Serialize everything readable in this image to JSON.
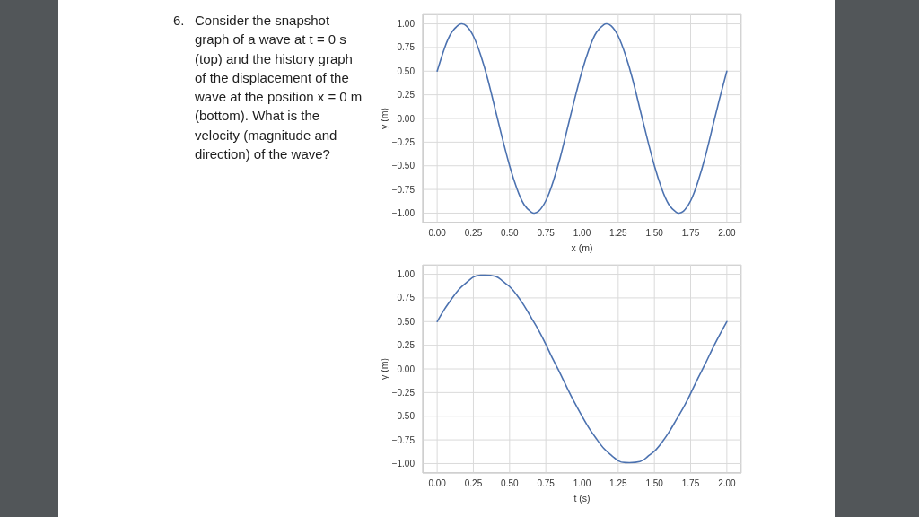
{
  "chart_data": [
    {
      "type": "line",
      "xlabel": "x (m)",
      "ylabel": "y (m)",
      "annotations": [
        "6. Consider the snapshot\ngraph of a wave at t = 0 s\n(top) and the history graph\nof the displacement of the\nwave at the position x = 0 m\n(bottom). What is the\nvelocity (magnitude and\ndirection) of the wave?"
      ],
      "x": [
        0,
        0.05,
        0.1,
        0.15,
        0.17,
        0.2,
        0.25,
        0.3,
        0.35,
        0.4,
        0.45,
        0.5,
        0.55,
        0.6,
        0.65,
        0.67,
        0.7,
        0.75,
        0.8,
        0.85,
        0.9,
        0.95,
        1.0,
        1.05,
        1.1,
        1.15,
        1.17,
        1.2,
        1.25,
        1.3,
        1.35,
        1.4,
        1.45,
        1.5,
        1.55,
        1.6,
        1.65,
        1.67,
        1.7,
        1.75,
        1.8,
        1.85,
        1.9,
        1.95,
        2.0
      ],
      "series": [
        {
          "color": "#4c72b0",
          "values": [
            0.5,
            0.74,
            0.91,
            0.99,
            1.0,
            0.98,
            0.87,
            0.67,
            0.41,
            0.1,
            -0.21,
            -0.5,
            -0.74,
            -0.91,
            -0.99,
            -1.0,
            -0.98,
            -0.87,
            -0.67,
            -0.41,
            -0.1,
            0.21,
            0.5,
            0.74,
            0.91,
            0.99,
            1.0,
            0.98,
            0.87,
            0.67,
            0.41,
            0.1,
            -0.21,
            -0.5,
            -0.74,
            -0.91,
            -0.99,
            -1.0,
            -0.98,
            -0.87,
            -0.67,
            -0.41,
            -0.1,
            0.21,
            0.5
          ]
        }
      ],
      "xlim": [
        -0.1,
        2.1
      ],
      "ylim": [
        -1.1,
        1.1
      ],
      "xticks": [
        {
          "value": 0,
          "label": "0.00"
        },
        {
          "value": 0.25,
          "label": "0.25"
        },
        {
          "value": 0.5,
          "label": "0.50"
        },
        {
          "value": 0.75,
          "label": "0.75"
        },
        {
          "value": 1,
          "label": "1.00"
        },
        {
          "value": 1.25,
          "label": "1.25"
        },
        {
          "value": 1.5,
          "label": "1.50"
        },
        {
          "value": 1.75,
          "label": "1.75"
        },
        {
          "value": 2,
          "label": "2.00"
        }
      ],
      "yticks": [
        {
          "value": -1,
          "label": "−1.00"
        },
        {
          "value": -0.75,
          "label": "−0.75"
        },
        {
          "value": -0.5,
          "label": "−0.50"
        },
        {
          "value": -0.25,
          "label": "−0.25"
        },
        {
          "value": 0,
          "label": "0.00"
        },
        {
          "value": 0.25,
          "label": "0.25"
        },
        {
          "value": 0.5,
          "label": "0.50"
        },
        {
          "value": 0.75,
          "label": "0.75"
        },
        {
          "value": 1,
          "label": "1.00"
        }
      ],
      "grid": true
    },
    {
      "type": "line",
      "xlabel": "t (s)",
      "ylabel": "y (m)",
      "x": [
        0,
        0.05,
        0.1,
        0.15,
        0.2,
        0.25,
        0.3,
        0.4,
        0.45,
        0.5,
        0.55,
        0.6,
        0.65,
        0.7,
        0.75,
        0.8,
        0.85,
        0.9,
        0.95,
        1.0,
        1.05,
        1.1,
        1.15,
        1.2,
        1.25,
        1.3,
        1.4,
        1.45,
        1.5,
        1.55,
        1.6,
        1.65,
        1.7,
        1.75,
        1.8,
        1.85,
        1.9,
        1.95,
        2.0
      ],
      "series": [
        {
          "color": "#4c72b0",
          "values": [
            0.5,
            0.63,
            0.74,
            0.84,
            0.91,
            0.97,
            0.99,
            0.98,
            0.93,
            0.87,
            0.78,
            0.67,
            0.54,
            0.41,
            0.26,
            0.1,
            -0.05,
            -0.21,
            -0.36,
            -0.5,
            -0.63,
            -0.74,
            -0.84,
            -0.91,
            -0.97,
            -0.99,
            -0.98,
            -0.93,
            -0.87,
            -0.78,
            -0.67,
            -0.54,
            -0.41,
            -0.26,
            -0.1,
            0.05,
            0.21,
            0.36,
            0.5
          ]
        }
      ],
      "xlim": [
        -0.1,
        2.1
      ],
      "ylim": [
        -1.1,
        1.1
      ],
      "xticks": [
        {
          "value": 0,
          "label": "0.00"
        },
        {
          "value": 0.25,
          "label": "0.25"
        },
        {
          "value": 0.5,
          "label": "0.50"
        },
        {
          "value": 0.75,
          "label": "0.75"
        },
        {
          "value": 1,
          "label": "1.00"
        },
        {
          "value": 1.25,
          "label": "1.25"
        },
        {
          "value": 1.5,
          "label": "1.50"
        },
        {
          "value": 1.75,
          "label": "1.75"
        },
        {
          "value": 2,
          "label": "2.00"
        }
      ],
      "yticks": [
        {
          "value": -1,
          "label": "−1.00"
        },
        {
          "value": -0.75,
          "label": "−0.75"
        },
        {
          "value": -0.5,
          "label": "−0.50"
        },
        {
          "value": -0.25,
          "label": "−0.25"
        },
        {
          "value": 0,
          "label": "0.00"
        },
        {
          "value": 0.25,
          "label": "0.25"
        },
        {
          "value": 0.5,
          "label": "0.50"
        },
        {
          "value": 0.75,
          "label": "0.75"
        },
        {
          "value": 1,
          "label": "1.00"
        }
      ],
      "grid": true
    }
  ]
}
